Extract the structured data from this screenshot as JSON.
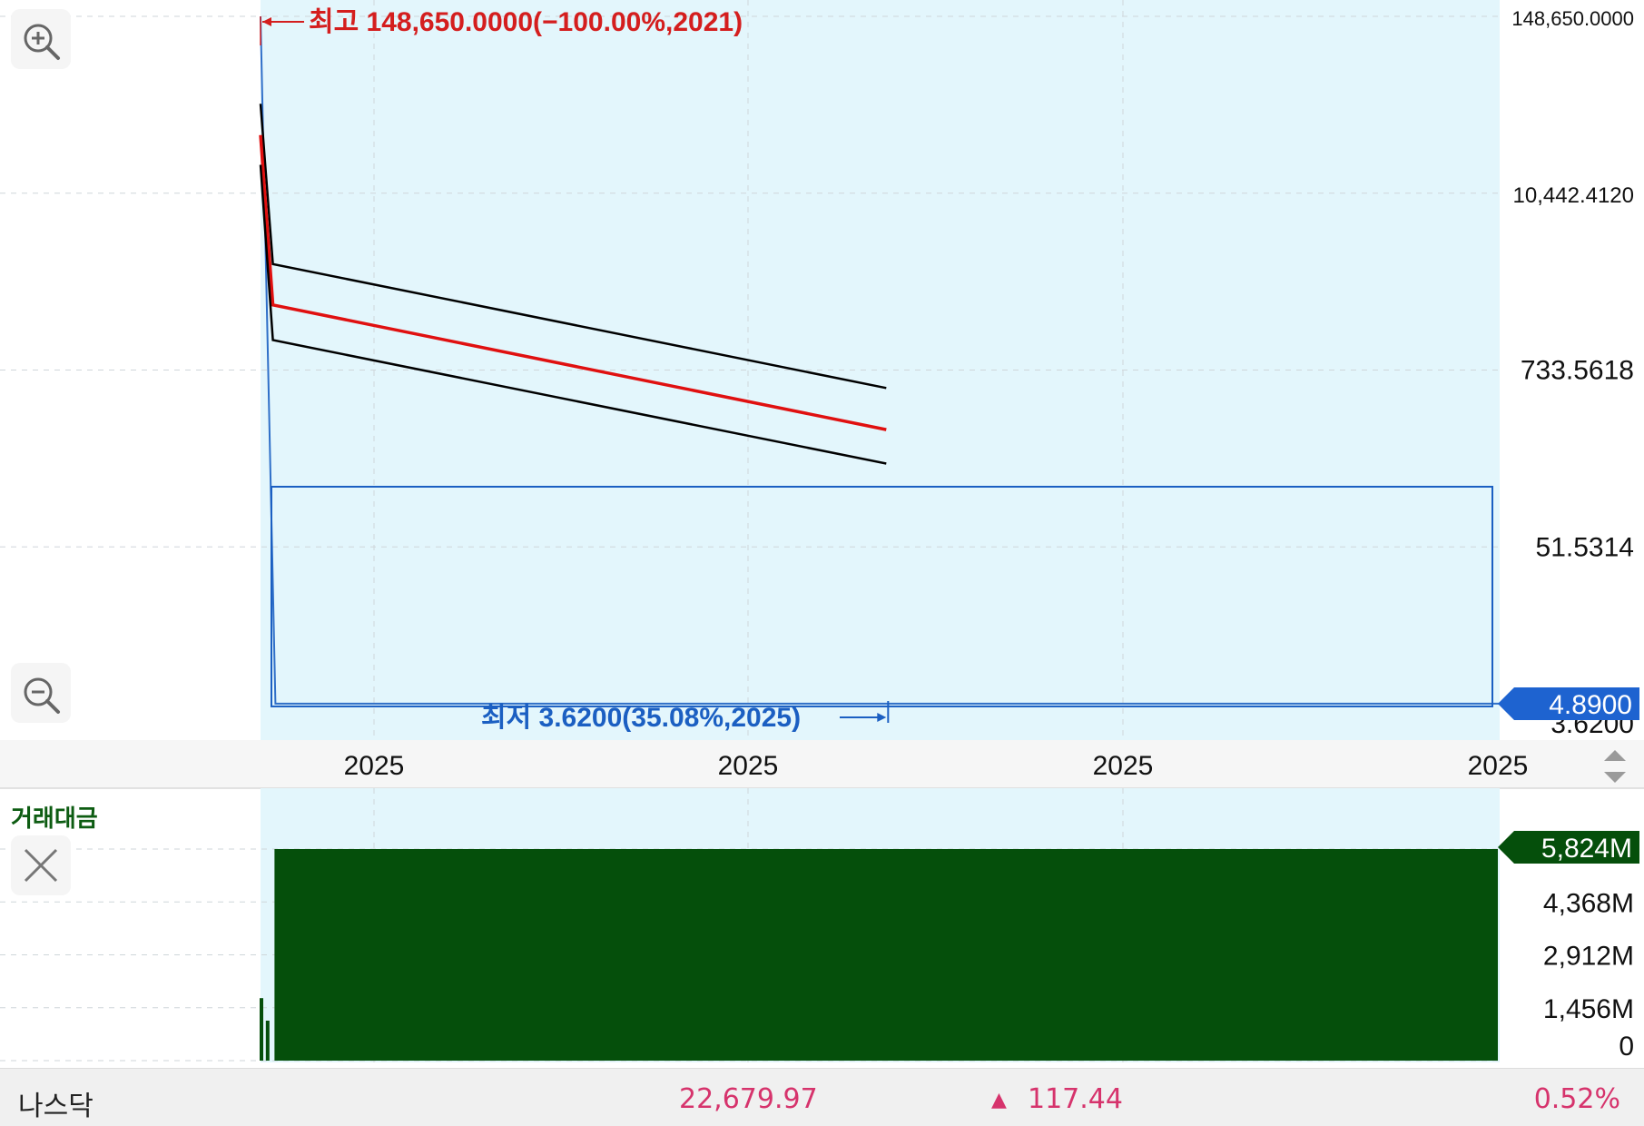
{
  "chart_data": {
    "type": "line",
    "price_panel": {
      "y_scale": "log",
      "ylim": [
        3.62,
        148650.0
      ],
      "y_ticks": [
        "148,650.0000",
        "10,442.4120",
        "733.5618",
        "51.5314",
        "3.6200"
      ],
      "x_tick_labels": [
        "2025",
        "2025",
        "2025",
        "2025"
      ],
      "current_price": "4.8900",
      "high_annotation": "최고 148,650.0000(−100.00%,2021)",
      "low_annotation": "최저 3.6200(35.08%,2025)",
      "series": [
        {
          "color": "#2f6fc8",
          "points": [
            [
              0,
              148650.0
            ],
            [
              0.012,
              4.89
            ],
            [
              0.012,
              4.89
            ],
            [
              1,
              4.89
            ]
          ]
        },
        {
          "color": "#000000",
          "points": [
            [
              0,
              40000
            ],
            [
              0.01,
              3600
            ],
            [
              1,
              560
            ]
          ]
        },
        {
          "color": "#e01010",
          "points": [
            [
              0,
              25000
            ],
            [
              0.01,
              1950
            ],
            [
              1,
              300
            ]
          ]
        },
        {
          "color": "#000000",
          "points": [
            [
              0,
              16000
            ],
            [
              0.01,
              1150
            ],
            [
              1,
              180
            ]
          ]
        }
      ],
      "channel_end_fraction": 0.505
    },
    "volume_panel": {
      "title": "거래대금",
      "ylim": [
        0,
        5824
      ],
      "y_ticks": [
        "0",
        "1,456M",
        "2,912M",
        "4,368M",
        "5,824M"
      ],
      "current_value": "5,824M",
      "bars": [
        {
          "x_fraction": 0.0,
          "value": 1720
        },
        {
          "x_fraction": 0.005,
          "value": 1100
        },
        {
          "x_fraction": 0.012,
          "value": 5824,
          "extends_to_end": true
        }
      ]
    }
  },
  "colors": {
    "plot_bg": "#e3f6fc",
    "volume_bar": "#054f0b",
    "high_annotation": "#d41e1e",
    "low_annotation": "#1b5fc2",
    "current_price_badge": "#1e63d0",
    "volume_title": "#0d5c12",
    "footer_up": "#d6336c"
  },
  "controls": {
    "zoom_in": "zoom-in-icon",
    "zoom_out": "zoom-out-icon",
    "close_indicator": "close-icon",
    "scroll": "up-down-arrows-icon"
  },
  "footer": {
    "index_name": "나스닥",
    "index_value": "22,679.97",
    "change_arrow": "▲",
    "change_value": "117.44",
    "change_percent": "0.52%"
  }
}
